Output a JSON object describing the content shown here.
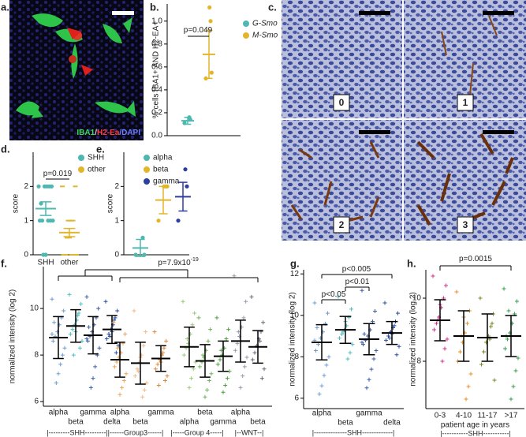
{
  "figure": {
    "panel_labels": [
      "a.",
      "b.",
      "c.",
      "d.",
      "e.",
      "f.",
      "g.",
      "h."
    ],
    "image_a": {
      "stain": [
        "IBA1",
        "/",
        "H2-Ea",
        "/DAPI"
      ]
    },
    "image_c": {
      "grades": [
        "0",
        "1",
        "2",
        "3"
      ]
    }
  },
  "chart_data": [
    {
      "type": "dot",
      "ylabel": "% cells IBA1+ AND H2-EA+",
      "ylim": [
        0,
        1.15
      ],
      "yticks": [
        {
          "value": 0,
          "label": "0.0"
        },
        {
          "value": 0.2,
          "label": "0.2"
        },
        {
          "value": 0.4,
          "label": "0.4"
        },
        {
          "value": 0.6,
          "label": "0.6"
        },
        {
          "value": 0.8,
          "label": "0.8"
        },
        {
          "value": 1,
          "label": "1.0"
        }
      ],
      "marker": "circle",
      "groups": [
        {
          "color": "#4db8b0",
          "values": [
            0.11,
            0.14,
            0.16
          ],
          "mean": 0.13,
          "sd": 0.03
        },
        {
          "color": "#e3b52a",
          "values": [
            0.5,
            0.55,
            1.0,
            1.12
          ],
          "mean": 0.71,
          "sd": 0.21
        }
      ],
      "legend": [
        {
          "name": "G-Smo",
          "color": "#4db8b0"
        },
        {
          "name": "M-Smo",
          "color": "#e3b52a"
        }
      ],
      "brackets": [
        {
          "label": "p=0.049"
        }
      ]
    },
    {
      "type": "dot",
      "ylabel": "score",
      "ylim": [
        0,
        3
      ],
      "yticks": [
        0,
        1,
        2
      ],
      "marker": "circle",
      "groups": [
        {
          "name": "SHH",
          "color": "#4db8b0",
          "values": [
            2,
            2,
            2,
            2,
            2,
            1,
            1,
            1,
            1,
            1,
            0,
            0,
            1.5
          ],
          "mean": 1.35,
          "sd": 0.2
        },
        {
          "name": "other",
          "color": "#e3b52a",
          "marker": "dash",
          "values": [
            2,
            2,
            1,
            1,
            1,
            0,
            0,
            0,
            0,
            0,
            0.5,
            0.5
          ],
          "mean": 0.65,
          "sd": 0.12
        }
      ],
      "legend": [
        {
          "name": "SHH",
          "color": "#4db8b0"
        },
        {
          "name": "other",
          "color": "#e3b52a"
        }
      ],
      "brackets": [
        {
          "label": "p=0.019"
        }
      ]
    },
    {
      "type": "dot",
      "ylabel": "score",
      "ylim": [
        0,
        3
      ],
      "yticks": [
        0,
        1,
        2
      ],
      "marker": "circle",
      "groups": [
        {
          "color": "#4db8b0",
          "values": [
            0,
            0,
            0.5
          ],
          "mean": 0.2,
          "sd": 0.25
        },
        {
          "color": "#e3b52a",
          "values": [
            1,
            2,
            2,
            2
          ],
          "mean": 1.6,
          "sd": 0.4
        },
        {
          "color": "#2d3e9c",
          "values": [
            1,
            2,
            2.5
          ],
          "mean": 1.7,
          "sd": 0.42
        }
      ],
      "legend": [
        {
          "name": "alpha",
          "color": "#4db8b0"
        },
        {
          "name": "beta",
          "color": "#e3b52a"
        },
        {
          "name": "gamma",
          "color": "#2d3e9c"
        }
      ]
    },
    {
      "type": "dot",
      "ylabel": "normalized intensity (log 2)",
      "ylim": [
        5.8,
        11.8
      ],
      "yticks": [
        6,
        8,
        10
      ],
      "marker": "plus",
      "summary_color": "#000000",
      "groups": [
        {
          "name": "alpha",
          "color": "#6f9fcf",
          "values": [
            10.4,
            9.9,
            9.6,
            9.3,
            9.0,
            8.8,
            8.6,
            8.3,
            8.0,
            7.6,
            7.2,
            6.8,
            9.4,
            8.9
          ],
          "mean": 8.75,
          "sd": 0.9
        },
        {
          "name": "beta",
          "color": "#4fbfbf",
          "values": [
            10.6,
            10.2,
            9.8,
            9.5,
            9.3,
            9.1,
            8.9,
            8.6,
            8.3,
            9.7,
            9.0,
            8.0
          ],
          "mean": 9.25,
          "sd": 0.7
        },
        {
          "name": "gamma",
          "color": "#3d5fa8",
          "values": [
            10.5,
            10.0,
            9.6,
            9.3,
            9.0,
            8.8,
            8.6,
            8.3,
            8.0,
            7.5,
            7.0,
            6.6,
            9.2,
            8.7
          ],
          "mean": 8.85,
          "sd": 0.8
        },
        {
          "name": "delta",
          "color": "#2b4f9e",
          "values": [
            10.3,
            9.9,
            9.6,
            9.3,
            9.1,
            8.9,
            8.7,
            8.4,
            8.1,
            9.5,
            9.0,
            8.8
          ],
          "mean": 9.1,
          "sd": 0.6
        },
        {
          "name": "alpha",
          "color": "#f0a35a",
          "values": [
            9.4,
            8.9,
            8.5,
            8.1,
            7.9,
            7.7,
            7.5,
            7.2,
            6.9,
            6.6,
            6.3,
            8.3
          ],
          "mean": 7.8,
          "sd": 0.75
        },
        {
          "name": "beta",
          "color": "#f4b98a",
          "values": [
            9.9,
            9.0,
            8.4,
            8.0,
            7.7,
            7.4,
            7.1,
            6.8,
            6.5,
            6.2,
            7.9,
            7.3
          ],
          "mean": 7.65,
          "sd": 0.9
        },
        {
          "name": "gamma",
          "color": "#e0883a",
          "values": [
            9.0,
            8.6,
            8.3,
            8.0,
            7.8,
            7.6,
            7.4,
            7.1,
            6.9,
            8.1,
            7.7,
            6.7
          ],
          "mean": 7.85,
          "sd": 0.55
        },
        {
          "name": "alpha",
          "color": "#9cc97a",
          "values": [
            10.3,
            9.8,
            9.3,
            8.9,
            8.5,
            8.3,
            8.0,
            7.7,
            7.4,
            7.0,
            6.6,
            8.7
          ],
          "mean": 8.35,
          "sd": 0.85
        },
        {
          "name": "beta",
          "color": "#6fb35a",
          "values": [
            9.6,
            9.1,
            8.6,
            8.2,
            7.9,
            7.7,
            7.5,
            7.2,
            6.9,
            6.5,
            6.2,
            8.0
          ],
          "mean": 7.75,
          "sd": 0.7
        },
        {
          "name": "gamma",
          "color": "#4fa040",
          "values": [
            9.6,
            9.1,
            8.7,
            8.3,
            8.0,
            7.8,
            7.6,
            7.3,
            7.0,
            6.7,
            6.4,
            8.2
          ],
          "mean": 7.95,
          "sd": 0.65
        },
        {
          "name": "alpha",
          "color": "#9a9aac",
          "values": [
            11.4,
            10.3,
            9.6,
            9.2,
            8.8,
            8.5,
            8.2,
            7.9,
            7.5,
            7.1,
            6.6,
            9.0
          ],
          "mean": 8.6,
          "sd": 0.9
        },
        {
          "name": "beta",
          "color": "#6a6a7a",
          "values": [
            10.5,
            9.4,
            9.0,
            8.7,
            8.4,
            8.1,
            7.8,
            7.4,
            7.0,
            8.6
          ],
          "mean": 8.35,
          "sd": 0.7
        }
      ],
      "subgroups": [
        "|---------SHH---------|",
        "|------Group3------|",
        "|-----Group 4-----|",
        "|--WNT--|"
      ],
      "brackets": [
        {
          "label": "p=7.9x10",
          "exponent": "-19"
        }
      ]
    },
    {
      "type": "dot",
      "ylabel": "normalized intensity (log 2)",
      "ylim": [
        5.5,
        12.2
      ],
      "yticks": [
        6,
        8,
        10,
        12
      ],
      "marker": "plus",
      "summary_color": "#000000",
      "groups": [
        {
          "name": "alpha",
          "color": "#6f9fcf",
          "values": [
            10.6,
            10.1,
            9.6,
            9.2,
            8.9,
            8.6,
            8.3,
            8.0,
            7.6,
            7.1,
            6.6,
            6.2,
            9.4,
            8.8
          ],
          "mean": 8.7,
          "sd": 0.85
        },
        {
          "name": "beta",
          "color": "#4fbfbf",
          "values": [
            10.9,
            10.3,
            9.9,
            9.5,
            9.3,
            9.1,
            8.9,
            8.6,
            8.2,
            7.9,
            9.7,
            9.2
          ],
          "mean": 9.3,
          "sd": 0.65
        },
        {
          "name": "gamma",
          "color": "#3d5fa8",
          "values": [
            11.2,
            10.2,
            9.7,
            9.3,
            9.0,
            8.8,
            8.6,
            8.3,
            7.9,
            7.4,
            6.9,
            6.5,
            9.1,
            8.7
          ],
          "mean": 8.85,
          "sd": 0.75
        },
        {
          "name": "delta",
          "color": "#2b4f9e",
          "values": [
            10.6,
            10.1,
            9.7,
            9.4,
            9.2,
            9.0,
            8.8,
            8.5,
            8.1,
            9.5,
            9.1,
            8.9
          ],
          "mean": 9.15,
          "sd": 0.55
        }
      ],
      "subgroups": [
        "|--------------SHH-------------|"
      ],
      "brackets": [
        {
          "label": "p<0.05"
        },
        {
          "label": "p<0.01"
        },
        {
          "label": "p<0.005"
        }
      ]
    },
    {
      "type": "dot",
      "ylabel": "normalized intensity (log 2)",
      "xlabel": "patient age in years",
      "ylim": [
        6.5,
        10.9
      ],
      "yticks": [
        8,
        10
      ],
      "marker": "plus",
      "summary_color": "#000000",
      "groups": [
        {
          "name": "0-3",
          "color": "#d6308e",
          "values": [
            10.7,
            10.4,
            10.0,
            9.7,
            9.4,
            9.2,
            9.0,
            8.7,
            8.4,
            8.0,
            9.8,
            9.3
          ],
          "mean": 9.3,
          "sd": 0.65
        },
        {
          "name": "4-10",
          "color": "#e8902a",
          "values": [
            10.2,
            9.6,
            9.2,
            8.9,
            8.6,
            8.3,
            8.0,
            7.6,
            7.2,
            6.8,
            9.4,
            8.8
          ],
          "mean": 8.8,
          "sd": 0.8
        },
        {
          "name": "11-17",
          "color": "#7a8a2a",
          "values": [
            10.0,
            9.5,
            9.1,
            8.8,
            8.6,
            8.3,
            7.9,
            7.4,
            9.2,
            8.7
          ],
          "mean": 8.75,
          "sd": 0.75
        },
        {
          "name": ">17",
          "color": "#3aa04a",
          "values": [
            10.3,
            9.9,
            9.5,
            9.2,
            8.9,
            8.7,
            8.4,
            8.1,
            7.7,
            7.2,
            6.8,
            9.6,
            8.8
          ],
          "mean": 8.8,
          "sd": 0.65
        }
      ],
      "subgroups": [
        "|-----------SHH-----------|"
      ],
      "brackets": [
        {
          "label": "p=0.0015"
        }
      ]
    }
  ]
}
